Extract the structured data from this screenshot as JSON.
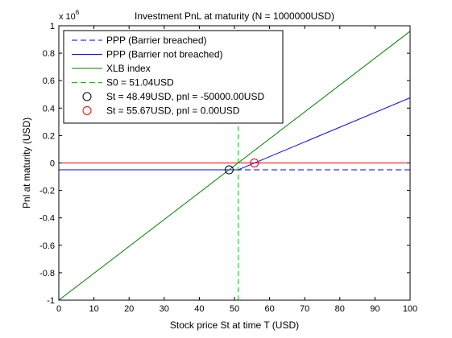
{
  "chart_data": {
    "type": "line",
    "title": "Investment PnL at maturity (N = 1000000USD)",
    "xlabel": "Stock price St at time T (USD)",
    "ylabel": "Pnl at maturity (USD)",
    "y_multiplier_label": "x 10",
    "y_multiplier_exponent": "6",
    "xlim": [
      0,
      100
    ],
    "ylim": [
      -1,
      1
    ],
    "x_ticks": [
      0,
      10,
      20,
      30,
      40,
      50,
      60,
      70,
      80,
      90,
      100
    ],
    "x_tick_labels": [
      "0",
      "10",
      "20",
      "30",
      "40",
      "50",
      "60",
      "70",
      "80",
      "90",
      "100"
    ],
    "y_ticks": [
      -1,
      -0.8,
      -0.6,
      -0.4,
      -0.2,
      0,
      0.2,
      0.4,
      0.6,
      0.8,
      1
    ],
    "y_tick_labels": [
      "-1",
      "-0.8",
      "-0.6",
      "-0.4",
      "-0.2",
      "0",
      "0.2",
      "0.4",
      "0.6",
      "0.8",
      "1"
    ],
    "grid": false,
    "legend_position": "top-left",
    "series": [
      {
        "name": "PPP (Barrier breached)",
        "color": "#0000ff",
        "style": "dashed",
        "x": [
          0,
          100
        ],
        "y": [
          -0.05,
          -0.05
        ]
      },
      {
        "name": "PPP (Barrier not breached)",
        "color": "#0000ff",
        "style": "solid",
        "x": [
          0,
          51.04,
          100
        ],
        "y": [
          -0.05,
          -0.05,
          0.475
        ]
      },
      {
        "name": "XLB index",
        "color": "#008000",
        "style": "solid",
        "x": [
          0,
          100
        ],
        "y": [
          -1,
          0.96
        ]
      },
      {
        "name": "S0 = 51.04USD",
        "color": "#00cc00",
        "style": "dashed-vertical",
        "x": [
          51.04,
          51.04
        ],
        "y": [
          -1,
          1
        ]
      },
      {
        "name": "St = 48.49USD, pnl = -50000.00USD",
        "color": "#000000",
        "style": "marker-circle",
        "x": [
          48.49
        ],
        "y": [
          -0.05
        ]
      },
      {
        "name": "St = 55.67USD, pnl = 0.00USD",
        "color": "#ff0000",
        "style": "marker-circle",
        "x": [
          55.67
        ],
        "y": [
          0
        ]
      }
    ],
    "reference_lines": [
      {
        "color": "#ff0000",
        "style": "solid",
        "x": [
          0,
          100
        ],
        "y": [
          0,
          0
        ]
      }
    ]
  }
}
